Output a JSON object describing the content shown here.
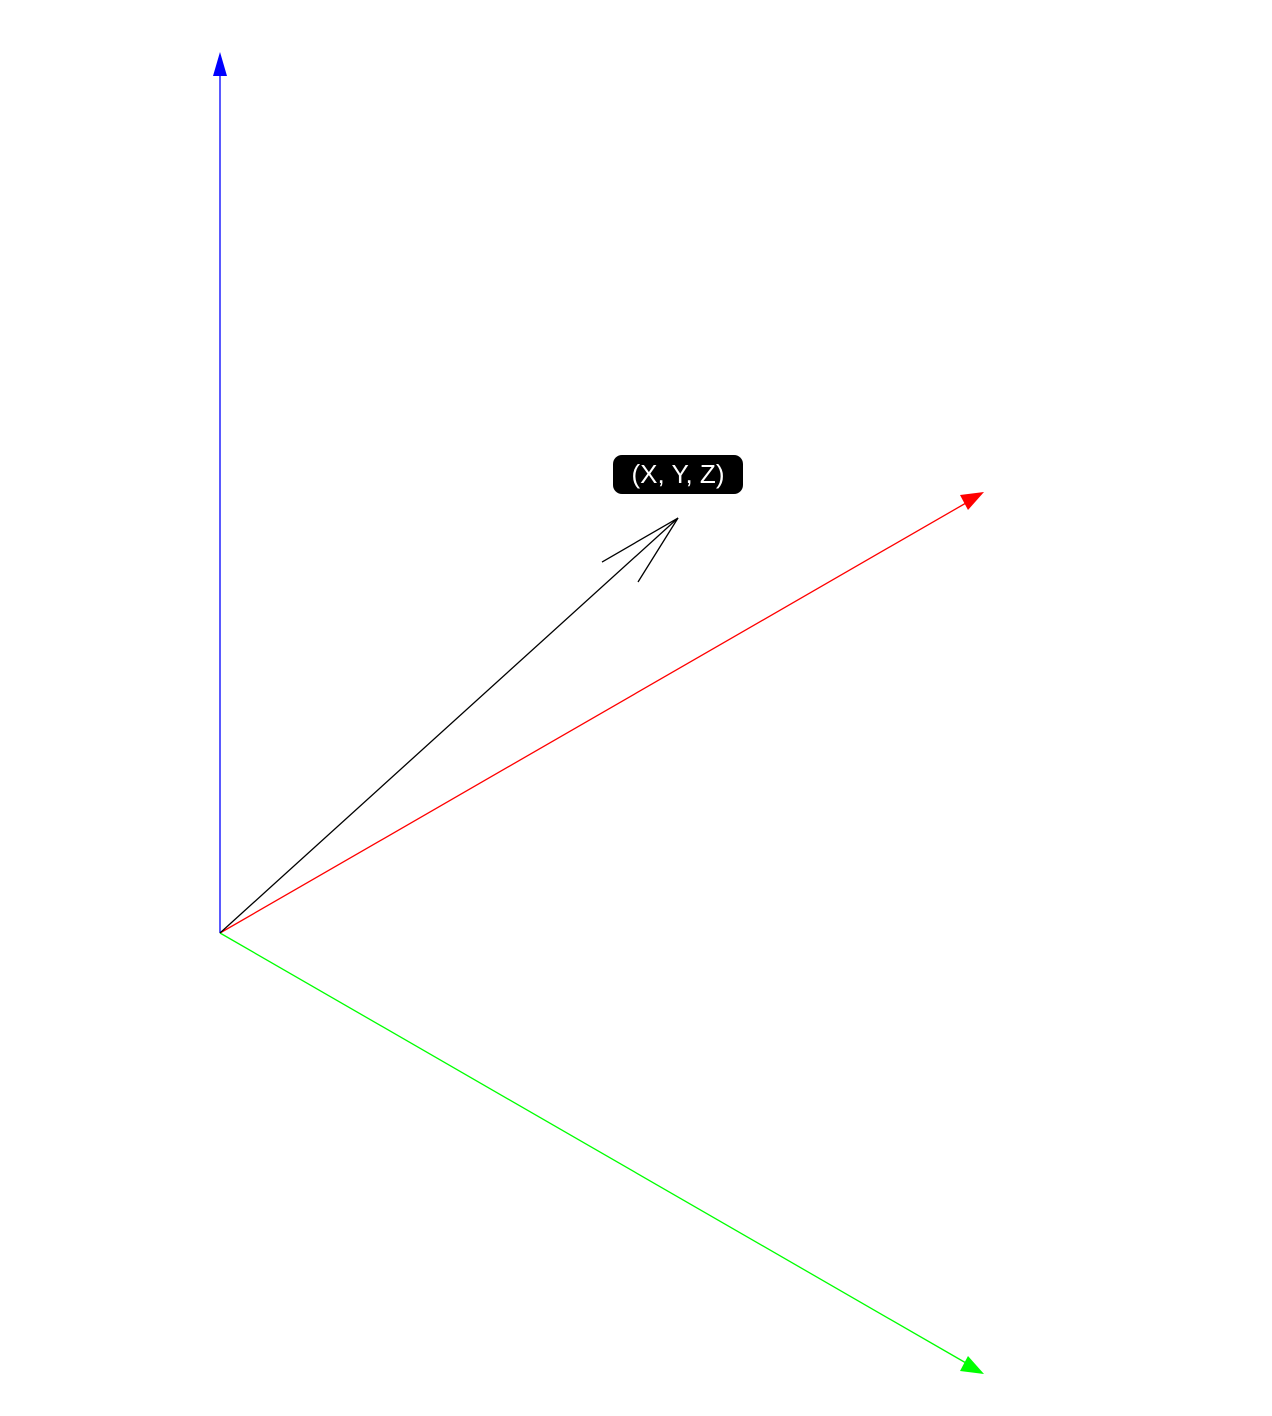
{
  "diagram": {
    "point_label": "(X, Y, Z)",
    "colors": {
      "x_axis": "#ff0000",
      "y_axis": "#00ff00",
      "z_axis": "#0000ff",
      "vector": "#000000",
      "label_background": "#000000",
      "label_text": "#ffffff",
      "background": "#ffffff"
    }
  }
}
